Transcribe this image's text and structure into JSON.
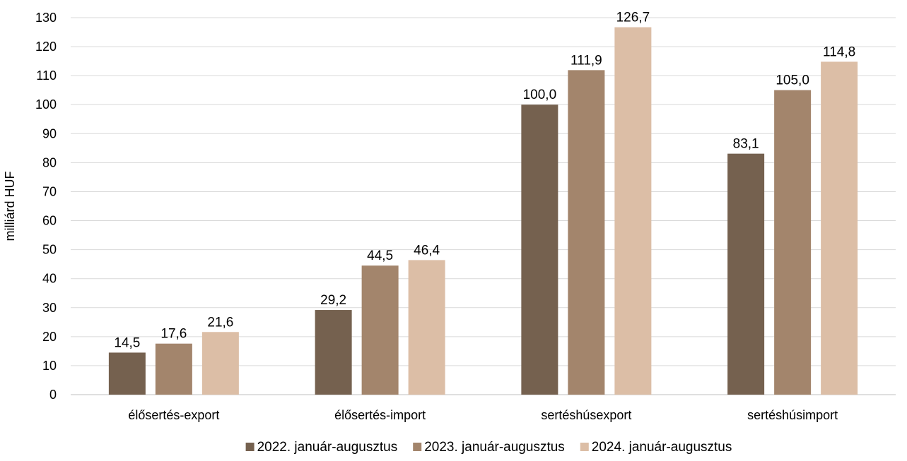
{
  "chart_data": {
    "type": "bar",
    "ylabel": "milliárd HUF",
    "ylim": [
      0,
      130
    ],
    "ytick_step": 10,
    "grid": true,
    "legend_position": "bottom",
    "categories": [
      "élősertés-export",
      "élősertés-import",
      "sertéshúsexport",
      "sertéshúsimport"
    ],
    "series": [
      {
        "name": "2022. január-augusztus",
        "color": "#75614f",
        "values": [
          14.5,
          29.2,
          100.0,
          83.1
        ],
        "labels": [
          "14,5",
          "29,2",
          "100,0",
          "83,1"
        ]
      },
      {
        "name": "2023. január-augusztus",
        "color": "#a3856c",
        "values": [
          17.6,
          44.5,
          111.9,
          105.0
        ],
        "labels": [
          "17,6",
          "44,5",
          "111,9",
          "105,0"
        ]
      },
      {
        "name": "2024. január-augusztus",
        "color": "#dcbea6",
        "values": [
          21.6,
          46.4,
          126.7,
          114.8
        ],
        "labels": [
          "21,6",
          "46,4",
          "126,7",
          "114,8"
        ]
      }
    ]
  }
}
